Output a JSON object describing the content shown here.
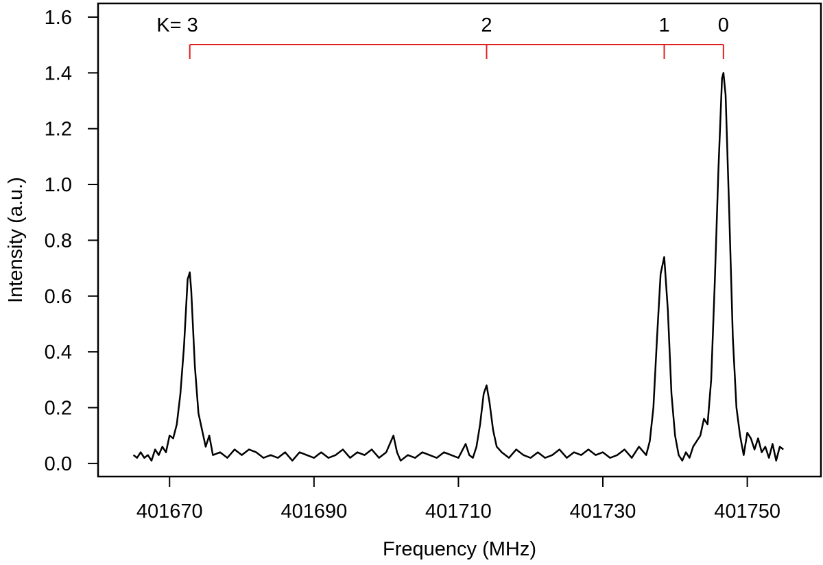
{
  "chart_data": {
    "type": "line",
    "x_label": "Frequency (MHz)",
    "y_label": "Intensity (a.u.)",
    "x": [
      401665,
      401665.5,
      401666,
      401666.5,
      401667,
      401667.5,
      401668,
      401668.5,
      401669,
      401669.5,
      401670,
      401670.5,
      401671,
      401671.5,
      401672,
      401672.5,
      401672.8,
      401673,
      401673.5,
      401674,
      401674.5,
      401675,
      401675.5,
      401676,
      401677,
      401678,
      401679,
      401680,
      401681,
      401682,
      401683,
      401684,
      401685,
      401686,
      401687,
      401688,
      401689,
      401690,
      401691,
      401692,
      401693,
      401694,
      401695,
      401696,
      401697,
      401698,
      401699,
      401700,
      401700.5,
      401701,
      401701.5,
      401702,
      401703,
      401704,
      401705,
      401706,
      401707,
      401708,
      401709,
      401710,
      401711,
      401711.5,
      401712,
      401712.5,
      401713,
      401713.5,
      401713.9,
      401714.3,
      401714.8,
      401715.3,
      401716,
      401717,
      401718,
      401719,
      401720,
      401721,
      401722,
      401723,
      401724,
      401725,
      401726,
      401727,
      401728,
      401729,
      401730,
      401731,
      401732,
      401733,
      401734,
      401735,
      401736,
      401736.5,
      401737,
      401737.5,
      401738,
      401738.5,
      401739,
      401739.5,
      401740,
      401740.5,
      401741,
      401741.5,
      401742,
      401742.5,
      401743,
      401743.5,
      401744,
      401744.5,
      401745,
      401745.5,
      401746,
      401746.5,
      401746.7,
      401747,
      401747.5,
      401748,
      401748.5,
      401749,
      401749.5,
      401750,
      401750.5,
      401751,
      401751.5,
      401752,
      401752.5,
      401753,
      401753.5,
      401754,
      401754.5,
      401755
    ],
    "series": [
      {
        "color": "#000000",
        "values": [
          0.03,
          0.02,
          0.04,
          0.02,
          0.03,
          0.01,
          0.05,
          0.03,
          0.06,
          0.04,
          0.1,
          0.09,
          0.14,
          0.25,
          0.42,
          0.66,
          0.685,
          0.62,
          0.35,
          0.18,
          0.12,
          0.06,
          0.1,
          0.03,
          0.04,
          0.02,
          0.05,
          0.03,
          0.05,
          0.04,
          0.02,
          0.03,
          0.02,
          0.04,
          0.01,
          0.04,
          0.03,
          0.02,
          0.04,
          0.02,
          0.03,
          0.05,
          0.02,
          0.04,
          0.03,
          0.05,
          0.02,
          0.04,
          0.07,
          0.1,
          0.04,
          0.01,
          0.03,
          0.02,
          0.04,
          0.03,
          0.02,
          0.04,
          0.03,
          0.02,
          0.07,
          0.03,
          0.02,
          0.06,
          0.14,
          0.25,
          0.28,
          0.22,
          0.12,
          0.06,
          0.04,
          0.02,
          0.05,
          0.03,
          0.02,
          0.04,
          0.02,
          0.03,
          0.05,
          0.02,
          0.04,
          0.03,
          0.05,
          0.03,
          0.04,
          0.02,
          0.03,
          0.05,
          0.02,
          0.06,
          0.03,
          0.08,
          0.2,
          0.45,
          0.68,
          0.74,
          0.55,
          0.25,
          0.1,
          0.03,
          0.01,
          0.04,
          0.02,
          0.06,
          0.08,
          0.1,
          0.16,
          0.14,
          0.3,
          0.65,
          1.05,
          1.38,
          1.4,
          1.32,
          0.9,
          0.45,
          0.2,
          0.1,
          0.03,
          0.11,
          0.09,
          0.05,
          0.09,
          0.04,
          0.06,
          0.02,
          0.07,
          0.01,
          0.06,
          0.05
        ]
      }
    ],
    "xlim": [
      401660.1,
      401760.2
    ],
    "xticks": [
      401670,
      401690,
      401710,
      401730,
      401750
    ],
    "ylim": [
      -0.047,
      1.649
    ],
    "yticks": [
      {
        "value": 0,
        "label": "0.0"
      },
      0.2,
      0.4,
      0.6,
      0.8,
      {
        "value": 1,
        "label": "1.0"
      },
      1.2,
      1.4,
      1.6
    ],
    "ladder": {
      "color": "#e0201b",
      "labels": [
        "K= 3",
        "2",
        "1",
        "0"
      ],
      "x": [
        401672.8,
        401713.9,
        401738.5,
        401746.7
      ]
    }
  }
}
